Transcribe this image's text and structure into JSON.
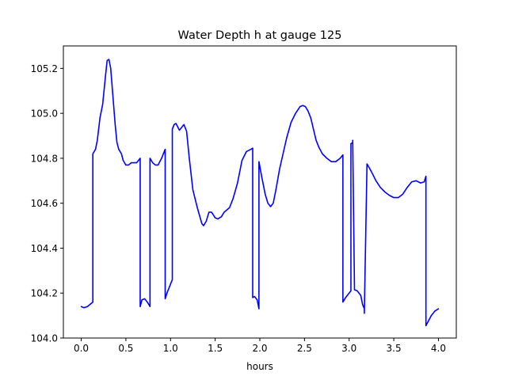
{
  "chart_data": {
    "type": "line",
    "title": "Water Depth h at gauge 125",
    "xlabel": "hours",
    "ylabel": "",
    "xlim": [
      -0.2,
      4.2
    ],
    "ylim": [
      104.0,
      105.3
    ],
    "x_ticks": [
      0.0,
      0.5,
      1.0,
      1.5,
      2.0,
      2.5,
      3.0,
      3.5,
      4.0
    ],
    "x_tick_labels": [
      "0.0",
      "0.5",
      "1.0",
      "1.5",
      "2.0",
      "2.5",
      "3.0",
      "3.5",
      "4.0"
    ],
    "y_ticks": [
      104.0,
      104.2,
      104.4,
      104.6,
      104.8,
      105.0,
      105.2
    ],
    "y_tick_labels": [
      "104.0",
      "104.2",
      "104.4",
      "104.6",
      "104.8",
      "105.0",
      "105.2"
    ],
    "grid": false,
    "series": [
      {
        "color": "#0000ff",
        "x": [
          0.0,
          0.03,
          0.07,
          0.1,
          0.13,
          0.13,
          0.16,
          0.18,
          0.21,
          0.24,
          0.27,
          0.29,
          0.31,
          0.33,
          0.35,
          0.38,
          0.4,
          0.42,
          0.45,
          0.47,
          0.5,
          0.53,
          0.56,
          0.59,
          0.62,
          0.66,
          0.66,
          0.68,
          0.71,
          0.74,
          0.77,
          0.77,
          0.8,
          0.83,
          0.86,
          0.9,
          0.94,
          0.94,
          0.96,
          0.99,
          1.02,
          1.02,
          1.04,
          1.06,
          1.08,
          1.1,
          1.13,
          1.15,
          1.18,
          1.21,
          1.25,
          1.3,
          1.35,
          1.37,
          1.4,
          1.43,
          1.46,
          1.5,
          1.53,
          1.57,
          1.6,
          1.63,
          1.66,
          1.7,
          1.75,
          1.8,
          1.85,
          1.9,
          1.92,
          1.92,
          1.94,
          1.97,
          1.99,
          1.99,
          2.02,
          2.06,
          2.09,
          2.12,
          2.15,
          2.18,
          2.22,
          2.26,
          2.3,
          2.35,
          2.4,
          2.45,
          2.48,
          2.51,
          2.54,
          2.57,
          2.6,
          2.63,
          2.66,
          2.7,
          2.75,
          2.8,
          2.85,
          2.9,
          2.93,
          2.93,
          2.96,
          3.0,
          3.02,
          3.02,
          3.04,
          3.04,
          3.06,
          3.09,
          3.13,
          3.15,
          3.17,
          3.17,
          3.2,
          3.25,
          3.3,
          3.35,
          3.4,
          3.45,
          3.5,
          3.55,
          3.6,
          3.65,
          3.7,
          3.75,
          3.8,
          3.84,
          3.86,
          3.86,
          3.88,
          3.92,
          3.96,
          4.0
        ],
        "y": [
          104.14,
          104.135,
          104.14,
          104.15,
          104.16,
          104.82,
          104.84,
          104.88,
          104.98,
          105.04,
          105.16,
          105.235,
          105.24,
          105.2,
          105.1,
          104.95,
          104.87,
          104.84,
          104.82,
          104.79,
          104.77,
          104.77,
          104.78,
          104.78,
          104.78,
          104.8,
          104.14,
          104.17,
          104.175,
          104.16,
          104.14,
          104.8,
          104.78,
          104.77,
          104.77,
          104.8,
          104.84,
          104.175,
          104.2,
          104.23,
          104.26,
          104.93,
          104.95,
          104.955,
          104.94,
          104.925,
          104.94,
          104.95,
          104.92,
          104.8,
          104.66,
          104.58,
          104.51,
          104.5,
          104.52,
          104.56,
          104.56,
          104.535,
          104.53,
          104.54,
          104.56,
          104.57,
          104.58,
          104.62,
          104.69,
          104.79,
          104.83,
          104.84,
          104.845,
          104.18,
          104.185,
          104.17,
          104.13,
          104.785,
          104.72,
          104.64,
          104.6,
          104.585,
          104.6,
          104.66,
          104.75,
          104.82,
          104.89,
          104.96,
          105.0,
          105.03,
          105.035,
          105.03,
          105.01,
          104.98,
          104.93,
          104.88,
          104.85,
          104.82,
          104.8,
          104.785,
          104.785,
          104.8,
          104.815,
          104.16,
          104.18,
          104.2,
          104.21,
          104.865,
          104.87,
          104.88,
          104.215,
          104.21,
          104.19,
          104.15,
          104.13,
          104.11,
          104.775,
          104.74,
          104.7,
          104.67,
          104.65,
          104.635,
          104.625,
          104.625,
          104.64,
          104.67,
          104.695,
          104.7,
          104.69,
          104.695,
          104.72,
          104.055,
          104.07,
          104.1,
          104.12,
          104.13
        ]
      }
    ]
  }
}
